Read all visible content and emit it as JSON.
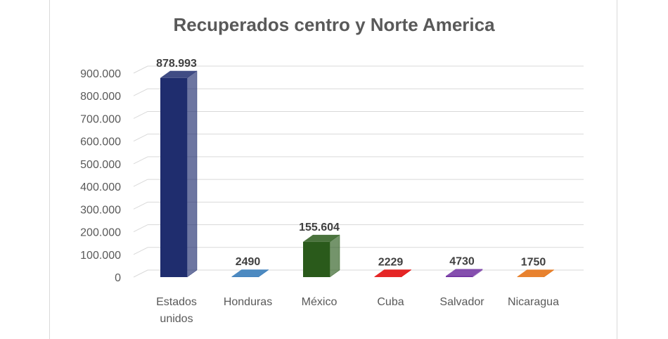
{
  "chart_data": {
    "type": "bar",
    "title": "Recuperados centro y Norte America",
    "categories": [
      [
        "Estados",
        "unidos"
      ],
      [
        "Honduras"
      ],
      [
        "México"
      ],
      [
        "Cuba"
      ],
      [
        "Salvador"
      ],
      [
        "Nicaragua"
      ]
    ],
    "values": [
      878993,
      2490,
      155604,
      2229,
      4730,
      1750
    ],
    "data_labels": [
      "878.993",
      "2490",
      "155.604",
      "2229",
      "4730",
      "1750"
    ],
    "bar_colors": [
      "#1f2d6e",
      "#2e75b6",
      "#2a5a1b",
      "#e00000",
      "#7030a0",
      "#e46c0a"
    ],
    "ylim": [
      0,
      900000
    ],
    "yticks": [
      0,
      100000,
      200000,
      300000,
      400000,
      500000,
      600000,
      700000,
      800000,
      900000
    ],
    "ytick_labels": [
      "0",
      "100.000",
      "200.000",
      "300.000",
      "400.000",
      "500.000",
      "600.000",
      "700.000",
      "800.000",
      "900.000"
    ],
    "grid": true,
    "style": "3d-column"
  }
}
